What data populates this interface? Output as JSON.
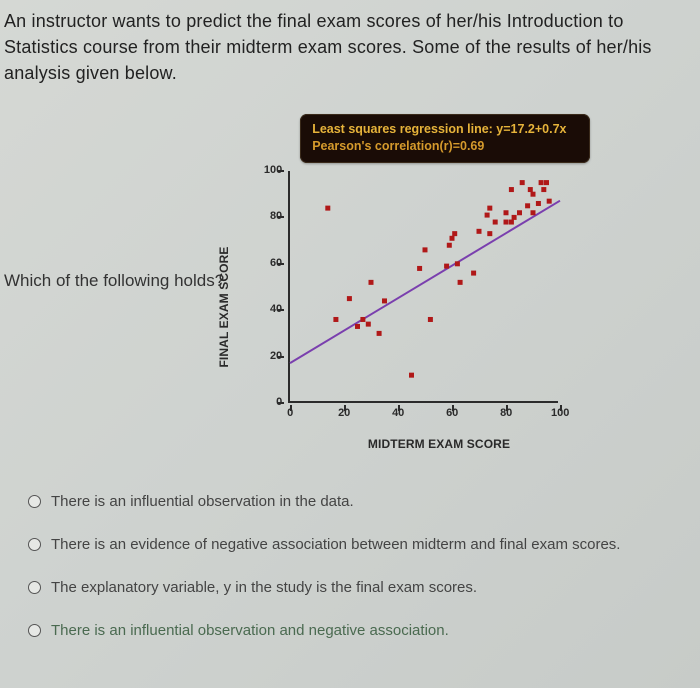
{
  "intro": "An instructor wants to predict the final exam scores of her/his Introduction to Statistics course from their midterm exam scores. Some of the results of her/his analysis given below.",
  "question_lead": "Which of the following holds?",
  "banner": {
    "line1": "Least squares regression line: y=17.2+0.7x",
    "line2": "Pearson's correlation(r)=0.69"
  },
  "chart": {
    "type": "scatter",
    "xlabel": "MIDTERM EXAM SCORE",
    "ylabel": "FINAL EXAM SCORE",
    "xlim": [
      0,
      100
    ],
    "ylim": [
      0,
      100
    ],
    "xtick_step": 20,
    "ytick_step": 20,
    "xticks": [
      0,
      20,
      40,
      60,
      80,
      100
    ],
    "yticks": [
      0,
      20,
      40,
      60,
      80,
      100
    ],
    "tick_fontsize": 11,
    "label_fontsize": 12,
    "axis_color": "#2b2b2b",
    "background_color": "transparent",
    "points": [
      [
        14,
        84
      ],
      [
        17,
        36
      ],
      [
        22,
        45
      ],
      [
        25,
        33
      ],
      [
        27,
        36
      ],
      [
        29,
        34
      ],
      [
        33,
        30
      ],
      [
        30,
        52
      ],
      [
        35,
        44
      ],
      [
        45,
        12
      ],
      [
        48,
        58
      ],
      [
        52,
        36
      ],
      [
        50,
        66
      ],
      [
        58,
        59
      ],
      [
        59,
        68
      ],
      [
        62,
        60
      ],
      [
        60,
        71
      ],
      [
        61,
        73
      ],
      [
        63,
        52
      ],
      [
        68,
        56
      ],
      [
        70,
        74
      ],
      [
        73,
        81
      ],
      [
        74,
        73
      ],
      [
        76,
        78
      ],
      [
        74,
        84
      ],
      [
        80,
        78
      ],
      [
        80,
        82
      ],
      [
        82,
        78
      ],
      [
        83,
        80
      ],
      [
        85,
        82
      ],
      [
        88,
        85
      ],
      [
        90,
        82
      ],
      [
        92,
        86
      ],
      [
        90,
        90
      ],
      [
        89,
        92
      ],
      [
        94,
        92
      ],
      [
        93,
        95
      ],
      [
        95,
        95
      ],
      [
        96,
        87
      ],
      [
        86,
        95
      ],
      [
        82,
        92
      ]
    ],
    "point_color": "#b01818",
    "point_size": 5,
    "regression": {
      "intercept": 17.2,
      "slope": 0.7,
      "color": "#7a3fae",
      "width": 2
    }
  },
  "choices": [
    "There is an influential observation in the data.",
    "There is an evidence of negative association between midterm and final exam scores.",
    "The explanatory variable, y in the study is the final exam scores.",
    "There is an influential observation and negative association."
  ]
}
